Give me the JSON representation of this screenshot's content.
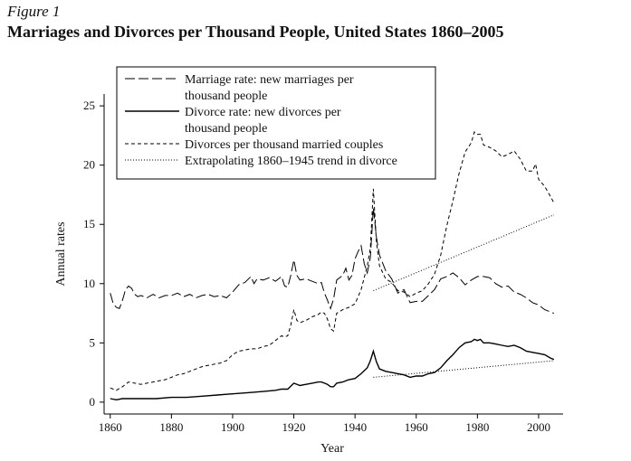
{
  "figure_label": "Figure 1",
  "title": "Marriages and Divorces per Thousand People, United States 1860–2005",
  "chart_data": {
    "type": "line",
    "title": "Marriages and Divorces per Thousand People, United States 1860–2005",
    "xlabel": "Year",
    "ylabel": "Annual rates",
    "xlim": [
      1858,
      2008
    ],
    "ylim": [
      -1,
      26
    ],
    "xticks": [
      1860,
      1880,
      1900,
      1920,
      1940,
      1960,
      1980,
      2000
    ],
    "yticks": [
      0,
      5,
      10,
      15,
      20,
      25
    ],
    "grid": false,
    "legend_position": "top",
    "series": [
      {
        "name": "Marriage rate: new marriages per thousand people",
        "style": "longdash",
        "points": [
          [
            1860,
            9.2
          ],
          [
            1861,
            8.3
          ],
          [
            1862,
            8.0
          ],
          [
            1863,
            7.9
          ],
          [
            1864,
            8.6
          ],
          [
            1865,
            9.5
          ],
          [
            1866,
            9.8
          ],
          [
            1867,
            9.6
          ],
          [
            1868,
            9.1
          ],
          [
            1869,
            8.9
          ],
          [
            1870,
            9.0
          ],
          [
            1872,
            8.8
          ],
          [
            1874,
            9.1
          ],
          [
            1876,
            8.8
          ],
          [
            1878,
            9.0
          ],
          [
            1880,
            9.0
          ],
          [
            1882,
            9.2
          ],
          [
            1884,
            8.9
          ],
          [
            1886,
            9.1
          ],
          [
            1888,
            8.8
          ],
          [
            1890,
            9.0
          ],
          [
            1892,
            9.1
          ],
          [
            1894,
            8.9
          ],
          [
            1896,
            9.0
          ],
          [
            1898,
            8.8
          ],
          [
            1900,
            9.3
          ],
          [
            1902,
            9.9
          ],
          [
            1904,
            10.1
          ],
          [
            1906,
            10.6
          ],
          [
            1907,
            10.0
          ],
          [
            1908,
            10.4
          ],
          [
            1910,
            10.3
          ],
          [
            1912,
            10.5
          ],
          [
            1914,
            10.2
          ],
          [
            1916,
            10.6
          ],
          [
            1917,
            9.8
          ],
          [
            1918,
            9.7
          ],
          [
            1919,
            10.7
          ],
          [
            1920,
            12.0
          ],
          [
            1921,
            10.7
          ],
          [
            1922,
            10.3
          ],
          [
            1924,
            10.4
          ],
          [
            1926,
            10.2
          ],
          [
            1928,
            10.0
          ],
          [
            1929,
            10.1
          ],
          [
            1930,
            9.2
          ],
          [
            1931,
            8.6
          ],
          [
            1932,
            7.9
          ],
          [
            1933,
            8.7
          ],
          [
            1934,
            10.3
          ],
          [
            1936,
            10.7
          ],
          [
            1937,
            11.3
          ],
          [
            1938,
            10.3
          ],
          [
            1939,
            10.7
          ],
          [
            1940,
            12.1
          ],
          [
            1941,
            12.7
          ],
          [
            1942,
            13.2
          ],
          [
            1943,
            11.7
          ],
          [
            1944,
            10.9
          ],
          [
            1945,
            12.2
          ],
          [
            1946,
            16.4
          ],
          [
            1947,
            13.9
          ],
          [
            1948,
            12.4
          ],
          [
            1950,
            11.1
          ],
          [
            1952,
            10.4
          ],
          [
            1954,
            9.2
          ],
          [
            1956,
            9.5
          ],
          [
            1958,
            8.4
          ],
          [
            1960,
            8.5
          ],
          [
            1962,
            8.5
          ],
          [
            1964,
            9.0
          ],
          [
            1966,
            9.5
          ],
          [
            1968,
            10.4
          ],
          [
            1970,
            10.6
          ],
          [
            1972,
            10.9
          ],
          [
            1974,
            10.5
          ],
          [
            1976,
            9.9
          ],
          [
            1978,
            10.3
          ],
          [
            1980,
            10.6
          ],
          [
            1982,
            10.6
          ],
          [
            1984,
            10.5
          ],
          [
            1986,
            10.0
          ],
          [
            1988,
            9.7
          ],
          [
            1990,
            9.8
          ],
          [
            1992,
            9.3
          ],
          [
            1994,
            9.1
          ],
          [
            1996,
            8.8
          ],
          [
            1998,
            8.4
          ],
          [
            2000,
            8.2
          ],
          [
            2002,
            7.8
          ],
          [
            2004,
            7.6
          ],
          [
            2005,
            7.5
          ]
        ]
      },
      {
        "name": "Divorce rate: new divorces per thousand people",
        "style": "solid",
        "points": [
          [
            1860,
            0.3
          ],
          [
            1862,
            0.2
          ],
          [
            1864,
            0.3
          ],
          [
            1866,
            0.3
          ],
          [
            1870,
            0.3
          ],
          [
            1875,
            0.3
          ],
          [
            1880,
            0.4
          ],
          [
            1885,
            0.4
          ],
          [
            1890,
            0.5
          ],
          [
            1895,
            0.6
          ],
          [
            1900,
            0.7
          ],
          [
            1905,
            0.8
          ],
          [
            1910,
            0.9
          ],
          [
            1914,
            1.0
          ],
          [
            1916,
            1.1
          ],
          [
            1918,
            1.1
          ],
          [
            1920,
            1.6
          ],
          [
            1922,
            1.4
          ],
          [
            1924,
            1.5
          ],
          [
            1926,
            1.6
          ],
          [
            1928,
            1.7
          ],
          [
            1929,
            1.7
          ],
          [
            1930,
            1.6
          ],
          [
            1931,
            1.5
          ],
          [
            1932,
            1.3
          ],
          [
            1933,
            1.3
          ],
          [
            1934,
            1.6
          ],
          [
            1936,
            1.7
          ],
          [
            1938,
            1.9
          ],
          [
            1940,
            2.0
          ],
          [
            1942,
            2.4
          ],
          [
            1944,
            2.9
          ],
          [
            1945,
            3.5
          ],
          [
            1946,
            4.3
          ],
          [
            1947,
            3.4
          ],
          [
            1948,
            2.8
          ],
          [
            1950,
            2.6
          ],
          [
            1952,
            2.5
          ],
          [
            1954,
            2.4
          ],
          [
            1956,
            2.3
          ],
          [
            1958,
            2.1
          ],
          [
            1960,
            2.2
          ],
          [
            1962,
            2.2
          ],
          [
            1964,
            2.4
          ],
          [
            1966,
            2.5
          ],
          [
            1968,
            2.9
          ],
          [
            1970,
            3.5
          ],
          [
            1972,
            4.0
          ],
          [
            1974,
            4.6
          ],
          [
            1976,
            5.0
          ],
          [
            1978,
            5.1
          ],
          [
            1979,
            5.3
          ],
          [
            1980,
            5.2
          ],
          [
            1981,
            5.3
          ],
          [
            1982,
            5.0
          ],
          [
            1984,
            5.0
          ],
          [
            1986,
            4.9
          ],
          [
            1988,
            4.8
          ],
          [
            1990,
            4.7
          ],
          [
            1992,
            4.8
          ],
          [
            1994,
            4.6
          ],
          [
            1996,
            4.3
          ],
          [
            1998,
            4.2
          ],
          [
            2000,
            4.1
          ],
          [
            2002,
            4.0
          ],
          [
            2004,
            3.7
          ],
          [
            2005,
            3.6
          ]
        ]
      },
      {
        "name": "Divorces per thousand married couples",
        "style": "shortdash",
        "points": [
          [
            1860,
            1.2
          ],
          [
            1862,
            1.0
          ],
          [
            1864,
            1.3
          ],
          [
            1866,
            1.7
          ],
          [
            1868,
            1.6
          ],
          [
            1870,
            1.5
          ],
          [
            1872,
            1.6
          ],
          [
            1874,
            1.7
          ],
          [
            1876,
            1.8
          ],
          [
            1878,
            1.9
          ],
          [
            1880,
            2.1
          ],
          [
            1882,
            2.3
          ],
          [
            1884,
            2.4
          ],
          [
            1886,
            2.6
          ],
          [
            1888,
            2.8
          ],
          [
            1890,
            3.0
          ],
          [
            1892,
            3.1
          ],
          [
            1894,
            3.2
          ],
          [
            1896,
            3.3
          ],
          [
            1898,
            3.5
          ],
          [
            1900,
            4.0
          ],
          [
            1902,
            4.3
          ],
          [
            1904,
            4.4
          ],
          [
            1906,
            4.5
          ],
          [
            1908,
            4.5
          ],
          [
            1910,
            4.7
          ],
          [
            1912,
            4.8
          ],
          [
            1914,
            5.2
          ],
          [
            1916,
            5.6
          ],
          [
            1917,
            5.5
          ],
          [
            1918,
            5.6
          ],
          [
            1919,
            6.5
          ],
          [
            1920,
            7.8
          ],
          [
            1921,
            6.9
          ],
          [
            1922,
            6.7
          ],
          [
            1924,
            6.9
          ],
          [
            1926,
            7.2
          ],
          [
            1928,
            7.4
          ],
          [
            1929,
            7.6
          ],
          [
            1930,
            7.5
          ],
          [
            1931,
            7.0
          ],
          [
            1932,
            6.2
          ],
          [
            1933,
            6.0
          ],
          [
            1934,
            7.5
          ],
          [
            1936,
            7.8
          ],
          [
            1938,
            8.0
          ],
          [
            1940,
            8.3
          ],
          [
            1942,
            9.5
          ],
          [
            1944,
            11.5
          ],
          [
            1945,
            13.0
          ],
          [
            1946,
            18.0
          ],
          [
            1947,
            13.5
          ],
          [
            1948,
            11.5
          ],
          [
            1950,
            10.4
          ],
          [
            1952,
            10.1
          ],
          [
            1954,
            9.4
          ],
          [
            1956,
            9.3
          ],
          [
            1958,
            8.9
          ],
          [
            1960,
            9.2
          ],
          [
            1962,
            9.4
          ],
          [
            1964,
            10.0
          ],
          [
            1966,
            10.8
          ],
          [
            1968,
            12.4
          ],
          [
            1970,
            14.9
          ],
          [
            1972,
            17.0
          ],
          [
            1974,
            19.3
          ],
          [
            1976,
            21.1
          ],
          [
            1978,
            21.9
          ],
          [
            1979,
            22.8
          ],
          [
            1980,
            22.6
          ],
          [
            1981,
            22.6
          ],
          [
            1982,
            21.7
          ],
          [
            1984,
            21.5
          ],
          [
            1986,
            21.2
          ],
          [
            1988,
            20.7
          ],
          [
            1990,
            20.9
          ],
          [
            1992,
            21.2
          ],
          [
            1994,
            20.5
          ],
          [
            1996,
            19.5
          ],
          [
            1998,
            19.5
          ],
          [
            1999,
            20.1
          ],
          [
            2000,
            18.8
          ],
          [
            2002,
            18.2
          ],
          [
            2004,
            17.3
          ],
          [
            2005,
            16.8
          ]
        ]
      },
      {
        "name": "Extrapolating 1860–1945 trend in divorce",
        "style": "dotted",
        "points": [
          [
            1946,
            9.4
          ],
          [
            2005,
            15.8
          ]
        ]
      },
      {
        "name": "",
        "style": "dotted",
        "points": [
          [
            1946,
            2.1
          ],
          [
            2005,
            3.5
          ]
        ]
      }
    ]
  }
}
